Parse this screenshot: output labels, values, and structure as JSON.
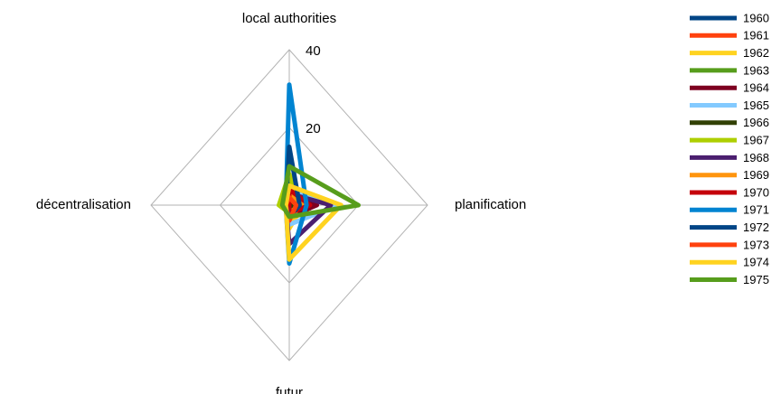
{
  "chart_data": {
    "type": "radar",
    "categories": [
      "local authorities",
      "planification",
      "futur",
      "décentralisation"
    ],
    "ylim": [
      0,
      40
    ],
    "yticks": [
      0,
      20,
      40
    ],
    "grid": true,
    "legend": "right",
    "series": [
      {
        "name": "1960",
        "color": "#004586",
        "values": [
          3,
          2,
          2,
          1
        ]
      },
      {
        "name": "1961",
        "color": "#ff420e",
        "values": [
          2,
          3,
          2,
          1
        ]
      },
      {
        "name": "1962",
        "color": "#ffd320",
        "values": [
          2,
          4,
          6,
          1
        ]
      },
      {
        "name": "1963",
        "color": "#579d1c",
        "values": [
          6,
          6,
          2,
          2
        ]
      },
      {
        "name": "1964",
        "color": "#7e0021",
        "values": [
          5,
          8,
          3,
          1
        ]
      },
      {
        "name": "1965",
        "color": "#83caff",
        "values": [
          4,
          14,
          5,
          1
        ]
      },
      {
        "name": "1966",
        "color": "#314004",
        "values": [
          1,
          2,
          1,
          0
        ]
      },
      {
        "name": "1967",
        "color": "#aecf00",
        "values": [
          8,
          3,
          2,
          3
        ]
      },
      {
        "name": "1968",
        "color": "#4b1f6f",
        "values": [
          3,
          12,
          10,
          1
        ]
      },
      {
        "name": "1969",
        "color": "#ff950e",
        "values": [
          3,
          4,
          3,
          1
        ]
      },
      {
        "name": "1970",
        "color": "#c5000b",
        "values": [
          4,
          6,
          2,
          0
        ]
      },
      {
        "name": "1971",
        "color": "#0084d1",
        "values": [
          31,
          5,
          15,
          1
        ]
      },
      {
        "name": "1972",
        "color": "#004586",
        "values": [
          15,
          3,
          3,
          1
        ]
      },
      {
        "name": "1973",
        "color": "#ff420e",
        "values": [
          2,
          2,
          4,
          1
        ]
      },
      {
        "name": "1974",
        "color": "#ffd320",
        "values": [
          5,
          15,
          14,
          1
        ]
      },
      {
        "name": "1975",
        "color": "#579d1c",
        "values": [
          10,
          20,
          3,
          2
        ]
      }
    ]
  }
}
